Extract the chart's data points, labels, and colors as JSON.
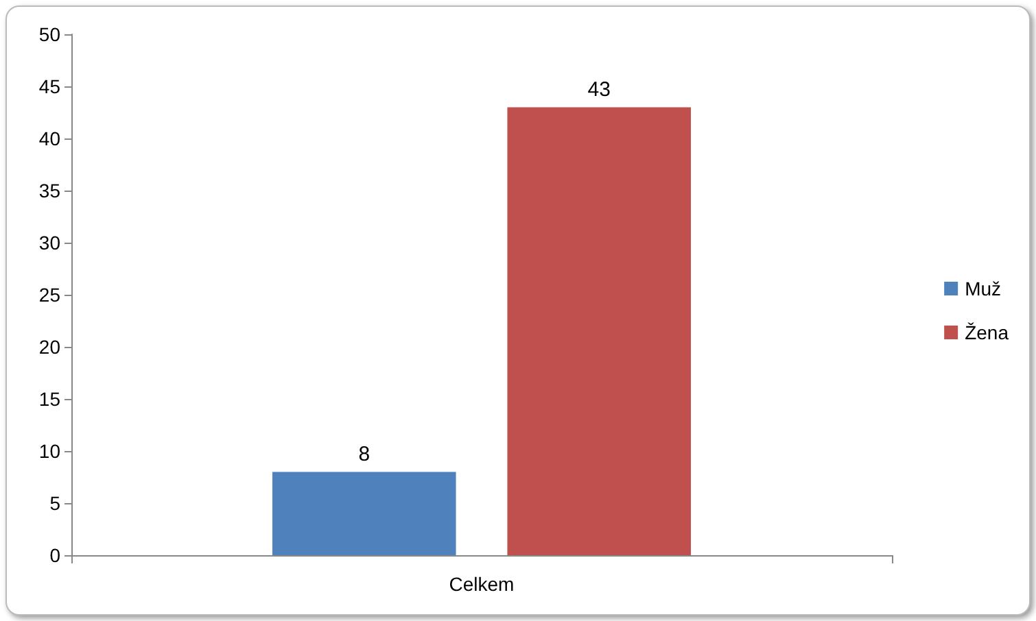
{
  "chart_data": {
    "type": "bar",
    "categories": [
      "Celkem"
    ],
    "series": [
      {
        "name": "Muž",
        "color": "#4f81bd",
        "values": [
          8
        ]
      },
      {
        "name": "Žena",
        "color": "#c0504d",
        "values": [
          43
        ]
      }
    ],
    "ylim": [
      0,
      50
    ],
    "yticks": [
      0,
      5,
      10,
      15,
      20,
      25,
      30,
      35,
      40,
      45,
      50
    ],
    "grid": false,
    "legend": "right",
    "data_labels": true
  }
}
